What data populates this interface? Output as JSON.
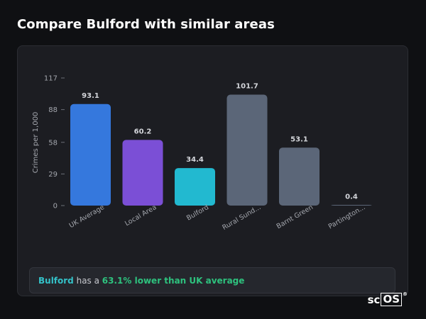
{
  "page": {
    "title": "Compare Bulford with similar areas"
  },
  "chart_data": {
    "type": "bar",
    "ylabel": "Crimes per 1,000",
    "xlabel": "",
    "ylim": [
      0,
      117
    ],
    "yticks": [
      0,
      29,
      58,
      88,
      117
    ],
    "categories": [
      "UK Average",
      "Local Area",
      "Bulford",
      "Rural Sund...",
      "Barnt Green",
      "Partington..."
    ],
    "values": [
      93.1,
      60.2,
      34.4,
      101.7,
      53.1,
      0.4
    ],
    "value_labels": [
      "93.1",
      "60.2",
      "34.4",
      "101.7",
      "53.1",
      "0.4"
    ],
    "colors": [
      "#3578dd",
      "#7b4fd6",
      "#22b9d0",
      "#5b6678",
      "#5b6678",
      "#5b6678"
    ],
    "grid": false
  },
  "callout": {
    "area": "Bulford",
    "middle": " has a ",
    "stat": "63.1% lower than UK average"
  },
  "brand": {
    "prefix": "sc",
    "boxed": "OS",
    "mark": "®"
  }
}
